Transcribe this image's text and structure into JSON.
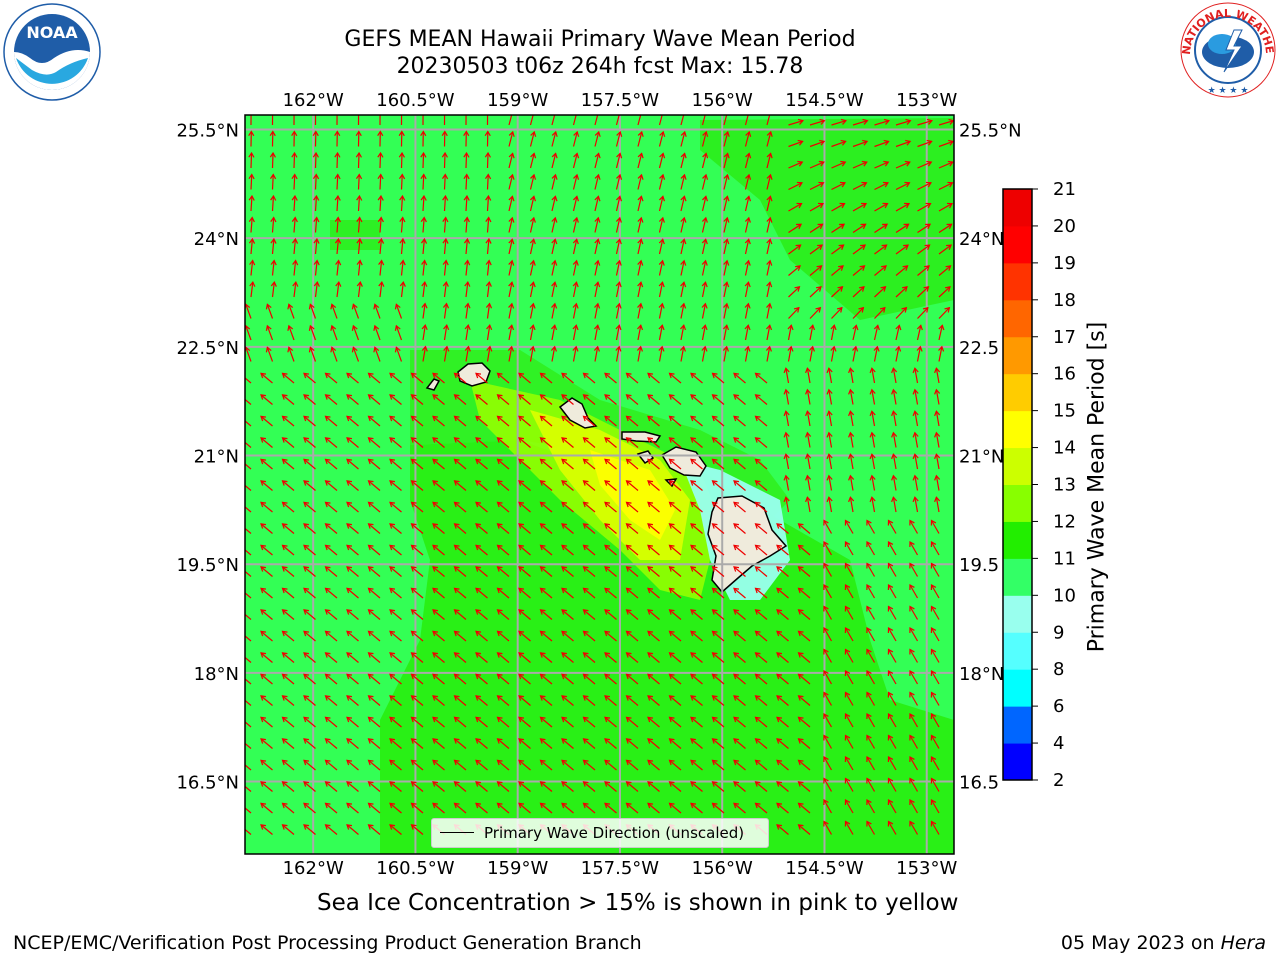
{
  "header": {
    "title_line1": "GEFS MEAN Hawaii Primary Wave Mean Period",
    "title_line2": "20230503 t06z 264h fcst   Max: 15.78"
  },
  "logos": {
    "left": {
      "text": "NOAA",
      "ring": "NATIONAL OCEANIC AND ATMOSPHERIC ADMINISTRATION · U.S. DEPARTMENT OF COMMERCE ·",
      "color": "#1f5da8"
    },
    "right": {
      "ring": "NATIONAL WEATHER SERVICE",
      "color": "#e02020"
    }
  },
  "chart_data": {
    "type": "heatmap",
    "title": "GEFS MEAN Hawaii Primary Wave Mean Period",
    "subtitle": "20230503 t06z 264h fcst   Max: 15.78",
    "lon_ticks": [
      "162°W",
      "160.5°W",
      "159°W",
      "157.5°W",
      "156°W",
      "154.5°W",
      "153°W"
    ],
    "lat_ticks": [
      "25.5°N",
      "24°N",
      "22.5°N",
      "21°N",
      "19.5°N",
      "18°N",
      "16.5°N"
    ],
    "lat_ticks_right": [
      "25.5°N",
      "24°N",
      "22.5",
      "21°N",
      "19.5",
      "18°N",
      "16.5"
    ],
    "lon_values": [
      -162,
      -160.5,
      -159,
      -157.5,
      -156,
      -154.5,
      -153
    ],
    "lat_values": [
      25.5,
      24,
      22.5,
      21,
      19.5,
      18,
      16.5
    ],
    "xlim": [
      -163,
      -152.6
    ],
    "ylim": [
      15.5,
      25.7
    ],
    "max_value": 15.78,
    "grid": true,
    "colorbar": {
      "label": "Primary Wave Mean Period [s]",
      "ticks": [
        "21",
        "20",
        "19",
        "18",
        "17",
        "16",
        "15",
        "14",
        "13",
        "12",
        "11",
        "10",
        "9",
        "8",
        "6",
        "4",
        "2"
      ],
      "levels": [
        2,
        4,
        6,
        8,
        9,
        10,
        11,
        12,
        13,
        14,
        15,
        16,
        17,
        18,
        19,
        20,
        21
      ],
      "colors": [
        "#0000ff",
        "#0066ff",
        "#00ffff",
        "#55ffff",
        "#99ffee",
        "#33ff66",
        "#22ee00",
        "#88ff00",
        "#ccff00",
        "#ffff00",
        "#ffcc00",
        "#ff9900",
        "#ff6600",
        "#ff3300",
        "#ff0000",
        "#ee0000"
      ]
    },
    "legend": {
      "label": "Primary Wave Direction (unscaled)",
      "position": "bottom-center"
    },
    "islands": [
      "Niihau",
      "Kauai",
      "Oahu",
      "Molokai",
      "Lanai",
      "Maui",
      "Kahoolawe",
      "Hawaii"
    ]
  },
  "footer": {
    "note": "Sea Ice Concentration > 15% is shown in pink to yellow",
    "left": "NCEP/EMC/Verification Post Processing Product Generation Branch",
    "right_date": "05 May 2023 on ",
    "right_host": "Hera"
  }
}
